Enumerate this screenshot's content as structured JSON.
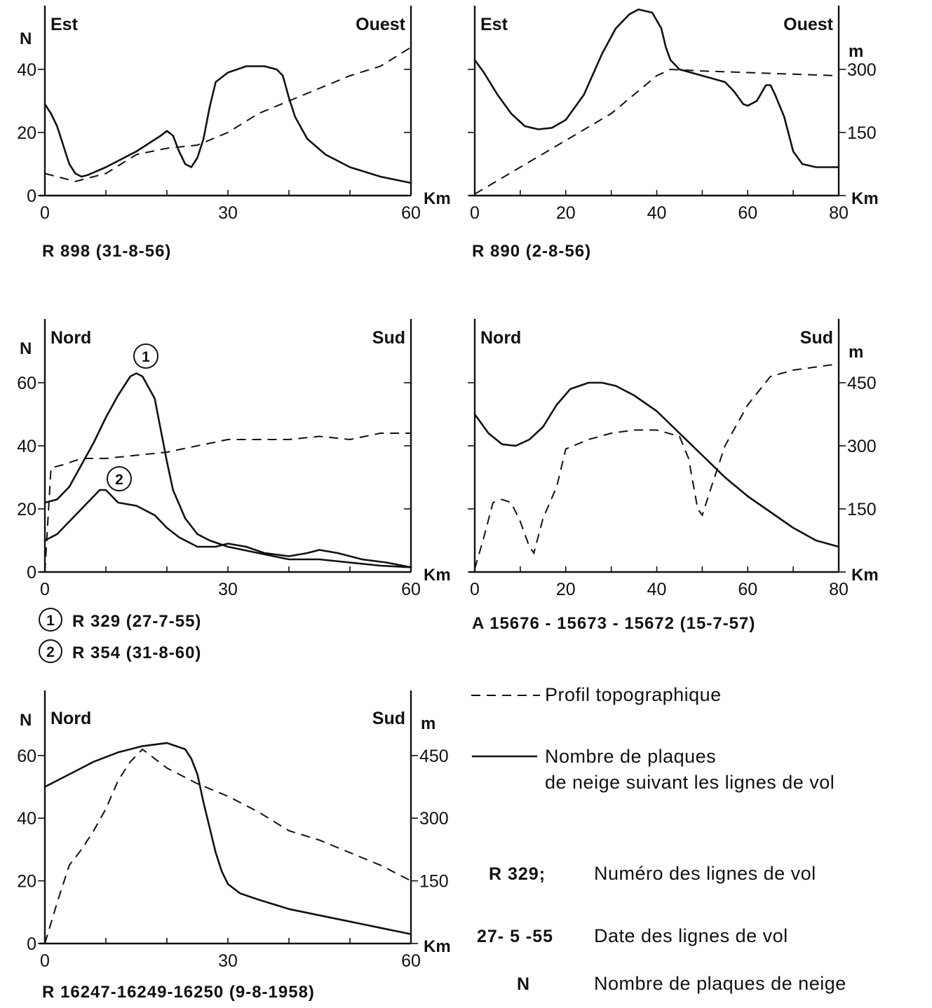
{
  "chart_data": [
    {
      "type": "line",
      "id": "c1",
      "left_dir": "Est",
      "right_dir": "Ouest",
      "ylabel_left": "N",
      "ylabel_right": "",
      "xunit": "Km",
      "xlim": [
        0,
        60
      ],
      "ylim": [
        0,
        60
      ],
      "ylim_right": null,
      "xticks": [
        "0",
        "30",
        "60"
      ],
      "yticks": [
        "0",
        "20",
        "40"
      ],
      "yticks_right": [],
      "caption": "R 898  (31-8-56)",
      "series": [
        {
          "style": "solid",
          "points": [
            [
              0,
              29
            ],
            [
              1,
              26
            ],
            [
              2,
              22
            ],
            [
              3,
              16
            ],
            [
              4,
              10
            ],
            [
              5,
              7
            ],
            [
              6,
              6
            ],
            [
              7,
              6.5
            ],
            [
              10,
              9
            ],
            [
              15,
              14
            ],
            [
              19,
              19
            ],
            [
              20,
              20.5
            ],
            [
              21,
              19
            ],
            [
              22,
              14
            ],
            [
              23,
              10
            ],
            [
              24,
              9
            ],
            [
              25,
              12
            ],
            [
              26,
              18
            ],
            [
              27,
              28
            ],
            [
              28,
              36
            ],
            [
              30,
              39
            ],
            [
              33,
              41
            ],
            [
              36,
              41
            ],
            [
              38,
              40
            ],
            [
              39,
              38
            ],
            [
              40,
              31
            ],
            [
              41,
              25
            ],
            [
              43,
              18
            ],
            [
              46,
              13
            ],
            [
              50,
              9
            ],
            [
              55,
              6
            ],
            [
              60,
              4
            ]
          ]
        },
        {
          "style": "dashed",
          "points": [
            [
              0,
              7
            ],
            [
              2,
              6
            ],
            [
              5,
              4.5
            ],
            [
              10,
              7
            ],
            [
              15,
              13
            ],
            [
              20,
              15
            ],
            [
              25,
              16
            ],
            [
              30,
              20
            ],
            [
              35,
              26
            ],
            [
              40,
              30
            ],
            [
              45,
              34
            ],
            [
              50,
              38
            ],
            [
              55,
              41
            ],
            [
              60,
              47
            ]
          ]
        }
      ]
    },
    {
      "type": "line",
      "id": "c2",
      "left_dir": "Est",
      "right_dir": "Ouest",
      "ylabel_left": "",
      "ylabel_right": "m",
      "xunit": "Km",
      "xlim": [
        0,
        80
      ],
      "ylim": [
        0,
        60
      ],
      "ylim_right": [
        0,
        450
      ],
      "xticks": [
        "0",
        "20",
        "40",
        "60",
        "80"
      ],
      "yticks": [],
      "yticks_right": [
        "150",
        "300"
      ],
      "caption": "R 890    (2-8-56)",
      "series": [
        {
          "style": "solid",
          "points": [
            [
              0,
              43
            ],
            [
              2,
              39
            ],
            [
              5,
              32
            ],
            [
              8,
              26
            ],
            [
              11,
              22
            ],
            [
              14,
              21
            ],
            [
              17,
              21.5
            ],
            [
              20,
              24
            ],
            [
              24,
              32
            ],
            [
              28,
              45
            ],
            [
              31,
              53
            ],
            [
              34,
              57.5
            ],
            [
              36,
              59
            ],
            [
              39,
              58
            ],
            [
              41,
              53
            ],
            [
              42,
              47
            ],
            [
              43,
              43
            ],
            [
              45,
              40
            ],
            [
              50,
              38
            ],
            [
              55,
              36
            ],
            [
              57,
              33
            ],
            [
              59,
              29
            ],
            [
              60,
              28.5
            ],
            [
              62,
              30
            ],
            [
              64,
              35
            ],
            [
              65,
              35
            ],
            [
              66,
              32
            ],
            [
              68,
              25
            ],
            [
              70,
              14
            ],
            [
              72,
              10
            ],
            [
              75,
              9
            ],
            [
              80,
              9
            ]
          ]
        },
        {
          "style": "dashed",
          "points": [
            [
              0,
              0.5
            ],
            [
              10,
              9
            ],
            [
              20,
              17.5
            ],
            [
              30,
              26
            ],
            [
              40,
              38
            ],
            [
              43,
              40
            ],
            [
              50,
              39.5
            ],
            [
              60,
              39
            ],
            [
              70,
              38.5
            ],
            [
              80,
              38
            ]
          ]
        }
      ]
    },
    {
      "type": "line",
      "id": "c3",
      "left_dir": "Nord",
      "right_dir": "Sud",
      "ylabel_left": "N",
      "ylabel_right": "",
      "xunit": "Km",
      "xlim": [
        0,
        60
      ],
      "ylim": [
        0,
        60
      ],
      "ylim_right": null,
      "xticks": [
        "0",
        "30",
        "60"
      ],
      "yticks": [
        "0",
        "20",
        "40",
        "60"
      ],
      "yticks_right": [],
      "caption": "",
      "series": [
        {
          "style": "solid",
          "name": "1",
          "points": [
            [
              0,
              22
            ],
            [
              2,
              23
            ],
            [
              4,
              27
            ],
            [
              6,
              34
            ],
            [
              8,
              41
            ],
            [
              10,
              49
            ],
            [
              12,
              56
            ],
            [
              13,
              59
            ],
            [
              14,
              62
            ],
            [
              15,
              63
            ],
            [
              16,
              62
            ],
            [
              18,
              55
            ],
            [
              19,
              45
            ],
            [
              20,
              35
            ],
            [
              21,
              26
            ],
            [
              23,
              17
            ],
            [
              25,
              12
            ],
            [
              27,
              10
            ],
            [
              30,
              8
            ],
            [
              35,
              6
            ],
            [
              40,
              4
            ],
            [
              45,
              4
            ],
            [
              50,
              3
            ],
            [
              55,
              2
            ],
            [
              60,
              1.5
            ]
          ]
        },
        {
          "style": "solid",
          "name": "2",
          "points": [
            [
              0,
              10
            ],
            [
              2,
              12
            ],
            [
              4,
              16
            ],
            [
              6,
              20
            ],
            [
              8,
              24
            ],
            [
              9,
              26
            ],
            [
              10,
              26
            ],
            [
              11,
              24
            ],
            [
              12,
              22
            ],
            [
              15,
              21
            ],
            [
              18,
              18
            ],
            [
              20,
              14
            ],
            [
              22,
              11
            ],
            [
              25,
              8
            ],
            [
              28,
              8
            ],
            [
              30,
              9
            ],
            [
              33,
              8
            ],
            [
              36,
              6
            ],
            [
              40,
              5
            ],
            [
              43,
              6
            ],
            [
              45,
              7
            ],
            [
              48,
              6
            ],
            [
              52,
              4
            ],
            [
              56,
              3
            ],
            [
              60,
              1.5
            ]
          ]
        },
        {
          "style": "dashed",
          "points": [
            [
              0,
              0
            ],
            [
              1,
              33
            ],
            [
              3,
              34
            ],
            [
              6,
              36
            ],
            [
              10,
              36
            ],
            [
              15,
              37
            ],
            [
              20,
              38
            ],
            [
              25,
              40
            ],
            [
              30,
              42
            ],
            [
              35,
              42
            ],
            [
              40,
              42
            ],
            [
              45,
              43
            ],
            [
              50,
              42
            ],
            [
              55,
              44
            ],
            [
              60,
              44
            ]
          ]
        }
      ]
    },
    {
      "type": "line",
      "id": "c4",
      "left_dir": "Nord",
      "right_dir": "Sud",
      "ylabel_left": "",
      "ylabel_right": "m",
      "xunit": "Km",
      "xlim": [
        0,
        80
      ],
      "ylim": [
        0,
        60
      ],
      "ylim_right": [
        0,
        450
      ],
      "xticks": [
        "0",
        "20",
        "40",
        "60",
        "80"
      ],
      "yticks": [],
      "yticks_right": [
        "150",
        "300",
        "450"
      ],
      "caption": "A 15676 - 15673 - 15672  (15-7-57)",
      "series": [
        {
          "style": "solid",
          "points": [
            [
              0,
              50
            ],
            [
              3,
              44
            ],
            [
              6,
              40.5
            ],
            [
              9,
              40
            ],
            [
              12,
              42
            ],
            [
              15,
              46
            ],
            [
              18,
              53
            ],
            [
              21,
              58
            ],
            [
              25,
              60
            ],
            [
              28,
              60
            ],
            [
              31,
              59
            ],
            [
              35,
              56
            ],
            [
              40,
              51
            ],
            [
              45,
              44
            ],
            [
              50,
              37
            ],
            [
              55,
              30
            ],
            [
              60,
              24
            ],
            [
              65,
              19
            ],
            [
              70,
              14
            ],
            [
              75,
              10
            ],
            [
              80,
              8
            ]
          ]
        },
        {
          "style": "dashed",
          "points": [
            [
              0,
              1
            ],
            [
              2,
              11
            ],
            [
              4,
              22
            ],
            [
              6,
              23
            ],
            [
              8,
              22
            ],
            [
              10,
              16
            ],
            [
              12,
              8
            ],
            [
              13,
              6
            ],
            [
              15,
              17
            ],
            [
              18,
              27
            ],
            [
              20,
              39
            ],
            [
              25,
              42
            ],
            [
              30,
              44
            ],
            [
              35,
              45
            ],
            [
              40,
              45
            ],
            [
              45,
              43
            ],
            [
              47,
              36
            ],
            [
              49,
              20
            ],
            [
              50,
              18
            ],
            [
              52,
              27
            ],
            [
              55,
              40
            ],
            [
              60,
              53
            ],
            [
              65,
              62
            ],
            [
              70,
              64
            ],
            [
              80,
              66
            ]
          ]
        }
      ]
    },
    {
      "type": "line",
      "id": "c5",
      "left_dir": "Nord",
      "right_dir": "Sud",
      "ylabel_left": "N",
      "ylabel_right": "m",
      "xunit": "Km",
      "xlim": [
        0,
        60
      ],
      "ylim": [
        0,
        60
      ],
      "ylim_right": [
        0,
        450
      ],
      "xticks": [
        "0",
        "30",
        "60"
      ],
      "yticks": [
        "0",
        "20",
        "40",
        "60"
      ],
      "yticks_right": [
        "150",
        "300",
        "450"
      ],
      "caption": "R 16247-16249-16250 (9-8-1958)",
      "series": [
        {
          "style": "solid",
          "points": [
            [
              0,
              50
            ],
            [
              4,
              54
            ],
            [
              8,
              58
            ],
            [
              12,
              61
            ],
            [
              16,
              63
            ],
            [
              20,
              64
            ],
            [
              23,
              62
            ],
            [
              24,
              59
            ],
            [
              25,
              54
            ],
            [
              26,
              45
            ],
            [
              27,
              37
            ],
            [
              28,
              29
            ],
            [
              29,
              23
            ],
            [
              30,
              19
            ],
            [
              32,
              16
            ],
            [
              35,
              14
            ],
            [
              40,
              11
            ],
            [
              45,
              9
            ],
            [
              50,
              7
            ],
            [
              55,
              5
            ],
            [
              60,
              3
            ]
          ]
        },
        {
          "style": "dashed",
          "points": [
            [
              0,
              0
            ],
            [
              2,
              13
            ],
            [
              4,
              25
            ],
            [
              6,
              30
            ],
            [
              8,
              36
            ],
            [
              10,
              43
            ],
            [
              12,
              52
            ],
            [
              14,
              58
            ],
            [
              16,
              62
            ],
            [
              20,
              56
            ],
            [
              25,
              51
            ],
            [
              30,
              47
            ],
            [
              35,
              42
            ],
            [
              40,
              36
            ],
            [
              45,
              33
            ],
            [
              50,
              29
            ],
            [
              55,
              25
            ],
            [
              60,
              20
            ]
          ]
        }
      ]
    }
  ],
  "chart3_captions": [
    {
      "num": "1",
      "text": "R 329  (27-7-55)"
    },
    {
      "num": "2",
      "text": "R 354  (31-8-60)"
    }
  ],
  "legend": {
    "dashed_label": "Profil topographique",
    "solid_label_line1": "Nombre de plaques",
    "solid_label_line2": "de neige suivant les lignes de vol",
    "r329_code": "R 329;",
    "r329_text": "Numéro des lignes de vol",
    "date_code": "27- 5 -55",
    "date_text": "Date des lignes de vol",
    "n_code": "N",
    "n_text": "Nombre de plaques de neige"
  }
}
